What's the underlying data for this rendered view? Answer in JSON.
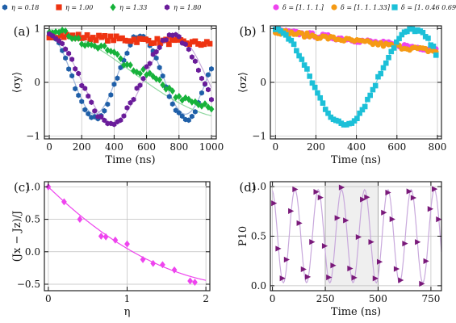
{
  "chart_data": [
    {
      "panel": "(a)",
      "type": "scatter",
      "xlabel": "Time (ns)",
      "ylabel": "⟨σy⟩",
      "xlim": [
        -30,
        1030
      ],
      "ylim": [
        -1.05,
        1.05
      ],
      "xticks": [
        0,
        200,
        400,
        600,
        800,
        1000
      ],
      "yticks": [
        -1,
        0,
        1
      ],
      "grid": true,
      "legend_position": "top",
      "series": [
        {
          "name": "η = 0.18",
          "color": "#1f5fa8",
          "marker": "hexagon",
          "fit": "sine",
          "fit_color": "#9db4d8",
          "fit_params": {
            "amp": 0.72,
            "offset": 0.13,
            "period": 560,
            "decay": 1000000000.0,
            "phase": 0
          }
        },
        {
          "name": "η = 1.00",
          "color": "#ee3311",
          "marker": "square",
          "fit": "linear",
          "fit_color": "#f29c8a",
          "fit_params": {
            "y0": 0.88,
            "slope": -0.00017
          }
        },
        {
          "name": "η = 1.33",
          "color": "#16b23a",
          "marker": "diamond",
          "fit": "sine",
          "fit_color": "#8fd7a0",
          "fit_params": {
            "amp": 0.98,
            "offset": 0.0,
            "period": 2400,
            "decay": 3200,
            "phase": 0
          }
        },
        {
          "name": "η = 1.80",
          "color": "#6a1c9a",
          "marker": "hexagon",
          "fit": "sine",
          "fit_color": "#c6a9da",
          "fit_params": {
            "amp": 0.8,
            "offset": 0.06,
            "period": 780,
            "decay": 1000000000.0,
            "phase": 0
          }
        }
      ]
    },
    {
      "panel": "(b)",
      "type": "scatter",
      "xlabel": "",
      "ylabel": "⟨σz⟩",
      "xlim": [
        -25,
        820
      ],
      "ylim": [
        -1.05,
        1.05
      ],
      "xticks": [
        0,
        200,
        400,
        600,
        800
      ],
      "yticks": [
        -1,
        0,
        1
      ],
      "grid": true,
      "legend_position": "top",
      "series": [
        {
          "name": "δ = [1.  1.  1.]",
          "color": "#ee44ee",
          "marker": "circle",
          "fit": "linear",
          "fit_color": "#f4a9f4",
          "fit_params": {
            "y0": 0.96,
            "slope": -0.00044
          }
        },
        {
          "name": "δ = [1.    1.    1.33]",
          "color": "#f59a14",
          "marker": "circle",
          "fit": "linear",
          "fit_color": "#f6c88a",
          "fit_params": {
            "y0": 0.95,
            "slope": -0.00047
          }
        },
        {
          "name": "δ = [1.    0.46 0.69]",
          "color": "#1cc0d8",
          "marker": "square",
          "fit": "sine",
          "fit_color": "#77d6e4",
          "fit_params": {
            "amp": 0.88,
            "offset": 0.1,
            "period": 680,
            "decay": 1000000000.0,
            "phase": 0
          }
        }
      ]
    },
    {
      "panel": "(c)",
      "type": "scatter",
      "xlabel": "η",
      "ylabel": "(Jx − Jz)/J",
      "xlim": [
        -0.05,
        2.05
      ],
      "ylim": [
        -0.6,
        1.08
      ],
      "xticks": [
        0,
        1,
        2
      ],
      "yticks": [
        -0.5,
        0.0,
        0.5,
        1.0
      ],
      "grid": true,
      "series": [
        {
          "name": "",
          "color": "#ee44ee",
          "marker": "diamond",
          "x": [
            0.0,
            0.2,
            0.4,
            0.67,
            0.73,
            0.85,
            1.0,
            1.2,
            1.33,
            1.45,
            1.6,
            1.8,
            1.86
          ],
          "y": [
            1.0,
            0.77,
            0.5,
            0.24,
            0.23,
            0.18,
            0.12,
            -0.12,
            -0.18,
            -0.2,
            -0.28,
            -0.45,
            -0.47
          ]
        },
        {
          "name": "",
          "color": "#ee44ee",
          "marker": "line",
          "fit_params": {
            "a": 1.0,
            "b": -1.18,
            "c": 0.23
          }
        }
      ]
    },
    {
      "panel": "(d)",
      "type": "scatter",
      "xlabel": "Time (ns)",
      "ylabel": "P10",
      "xlim": [
        -10,
        800
      ],
      "ylim": [
        -0.05,
        1.05
      ],
      "xticks": [
        0,
        250,
        500,
        750
      ],
      "yticks": [
        0.0,
        0.5,
        1.0
      ],
      "grid": true,
      "shaded_region": [
        250,
        500
      ],
      "series": [
        {
          "name": "",
          "color": "#7a1a7a",
          "marker": "triangle-right",
          "fit": "sine",
          "fit_color": "#c8a8dc",
          "fit_params": {
            "period": 110
          }
        }
      ]
    }
  ]
}
